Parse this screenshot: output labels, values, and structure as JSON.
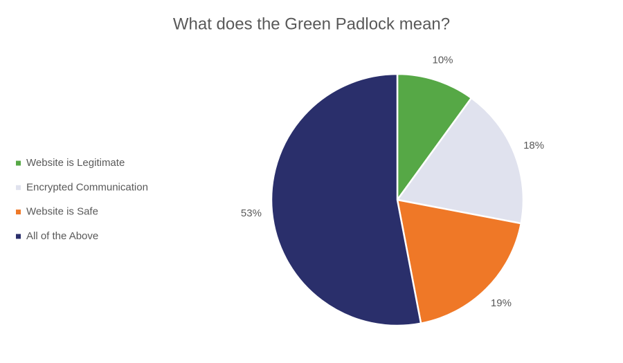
{
  "chart_data": {
    "type": "pie",
    "title": "What does the Green Padlock mean?",
    "categories": [
      "Website is Legitimate",
      "Encrypted Communication",
      "Website is Safe",
      "All of the Above"
    ],
    "values": [
      10,
      18,
      19,
      53
    ],
    "value_labels": [
      "10%",
      "18%",
      "19%",
      "53%"
    ],
    "colors": [
      "#56a846",
      "#e0e2ee",
      "#ef7827",
      "#2a2f6b"
    ],
    "legend": "left"
  }
}
